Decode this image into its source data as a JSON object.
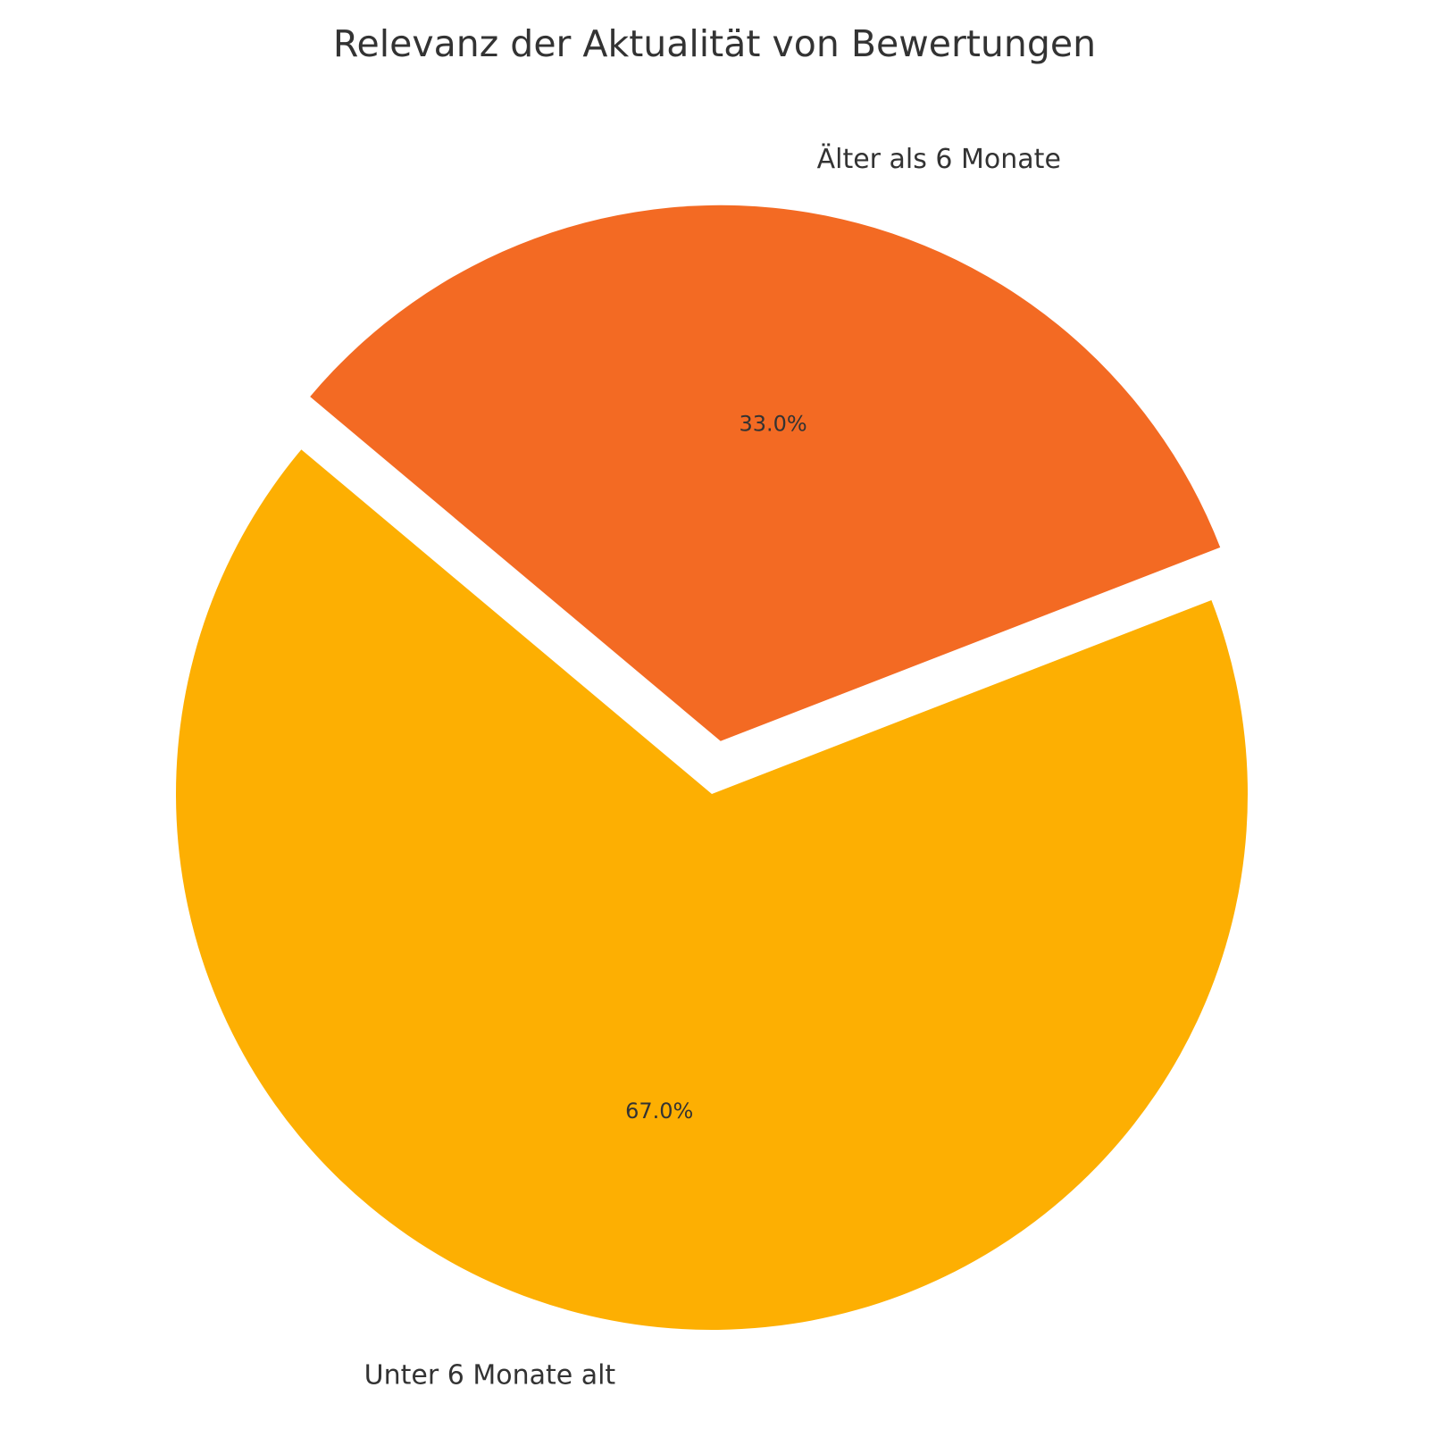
{
  "chart_data": {
    "type": "pie",
    "title": "Relevanz der Aktualität von Bewertungen",
    "slices": [
      {
        "label": "Unter 6 Monate alt",
        "value": 67.0,
        "pct_label": "67.0%",
        "color": "#FDAF02",
        "exploded": false
      },
      {
        "label": "Älter als 6 Monate",
        "value": 33.0,
        "pct_label": "33.0%",
        "color": "#F36A23",
        "exploded": true
      }
    ],
    "start_angle_deg": 140,
    "direction": "counterclockwise",
    "legend": "none"
  }
}
